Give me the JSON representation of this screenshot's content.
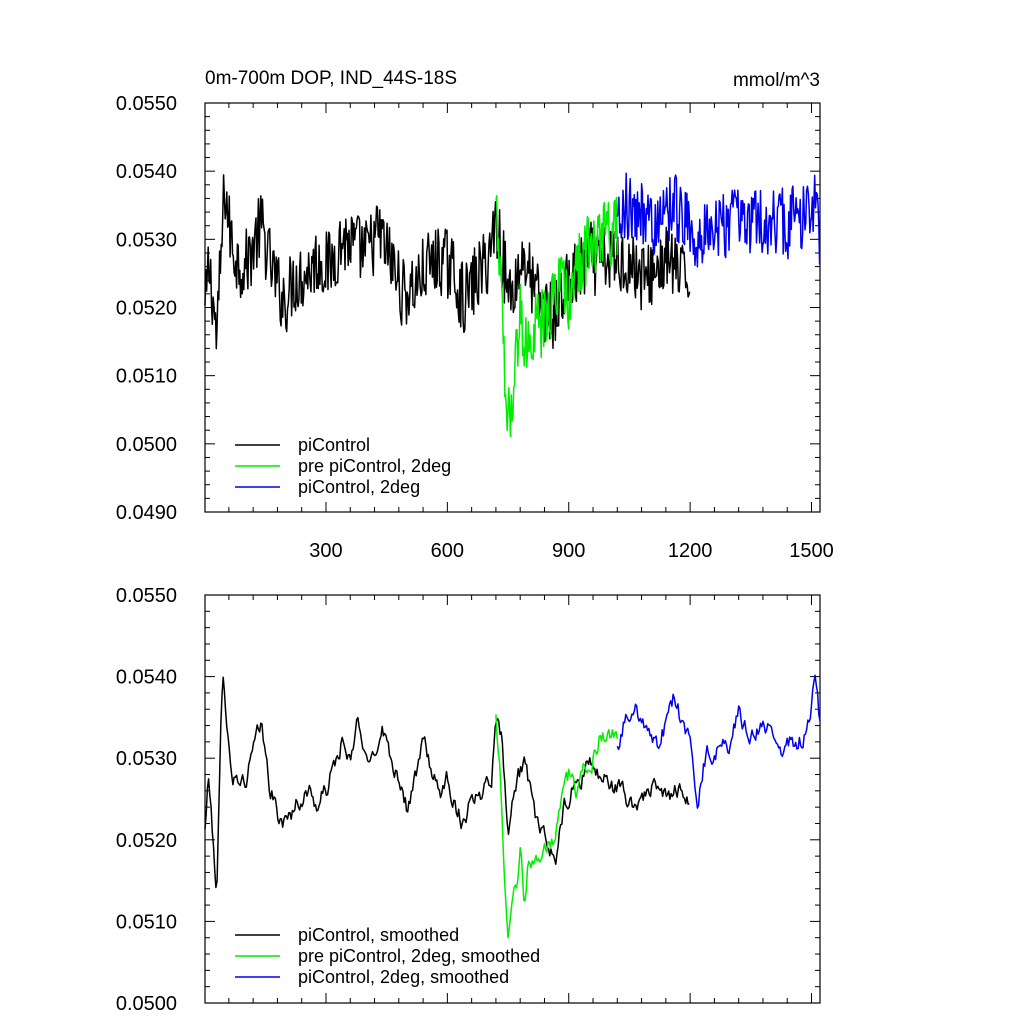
{
  "chart_data": [
    {
      "type": "line",
      "title": "0m-700m DOP, IND_44S-18S",
      "units": "mmol/m^3",
      "xlim": [
        1,
        1521
      ],
      "ylim": [
        0.049,
        0.055
      ],
      "xticks": [
        300,
        600,
        900,
        1200,
        1500
      ],
      "xtick_labels": [
        "300",
        "600",
        "900",
        "1200",
        "1500"
      ],
      "yticks": [
        0.049,
        0.05,
        0.051,
        0.052,
        0.053,
        0.054,
        0.055
      ],
      "ytick_labels": [
        "0.0490",
        "0.0500",
        "0.0510",
        "0.0520",
        "0.0530",
        "0.0540",
        "0.0550"
      ],
      "legend": "bottom-left",
      "grid": false,
      "series": [
        {
          "name": "piControl",
          "color": "#000000",
          "x": [
            1,
            10,
            20,
            30,
            40,
            50,
            60,
            70,
            80,
            100,
            120,
            140,
            160,
            180,
            200,
            220,
            250,
            280,
            310,
            340,
            370,
            400,
            430,
            460,
            490,
            520,
            550,
            580,
            610,
            640,
            670,
            700,
            720,
            735,
            750,
            770,
            790,
            810,
            830,
            850,
            870,
            890,
            910,
            930,
            950,
            970,
            1000,
            1030,
            1060,
            1090,
            1120,
            1150,
            1180,
            1200
          ],
          "y": [
            0.0519,
            0.0526,
            0.0522,
            0.0515,
            0.0527,
            0.0538,
            0.0532,
            0.0529,
            0.0527,
            0.0526,
            0.0529,
            0.0532,
            0.0527,
            0.0523,
            0.0521,
            0.0524,
            0.0525,
            0.0527,
            0.0526,
            0.053,
            0.0529,
            0.0528,
            0.0531,
            0.0527,
            0.0522,
            0.0523,
            0.0526,
            0.0527,
            0.0526,
            0.0521,
            0.0524,
            0.0527,
            0.0533,
            0.0528,
            0.0522,
            0.0524,
            0.0528,
            0.0523,
            0.0521,
            0.0519,
            0.0519,
            0.0523,
            0.0524,
            0.0525,
            0.0528,
            0.0526,
            0.0527,
            0.0527,
            0.0526,
            0.0524,
            0.0526,
            0.0527,
            0.0524,
            0.0525
          ]
        },
        {
          "name": "pre piControl, 2deg",
          "color": "#00ee00",
          "x": [
            720,
            730,
            740,
            750,
            760,
            770,
            780,
            790,
            800,
            820,
            840,
            860,
            880,
            900,
            920,
            940,
            960,
            980,
            1000,
            1020
          ],
          "y": [
            0.0534,
            0.0527,
            0.0511,
            0.0503,
            0.0507,
            0.0512,
            0.0519,
            0.0514,
            0.0516,
            0.0517,
            0.0518,
            0.0521,
            0.0524,
            0.0522,
            0.0526,
            0.0528,
            0.0529,
            0.0532,
            0.0531,
            0.0531
          ]
        },
        {
          "name": "piControl, 2deg",
          "color": "#0000ee",
          "x": [
            1020,
            1040,
            1060,
            1080,
            1100,
            1120,
            1140,
            1160,
            1180,
            1200,
            1220,
            1240,
            1260,
            1280,
            1300,
            1320,
            1340,
            1360,
            1380,
            1400,
            1420,
            1440,
            1460,
            1480,
            1500,
            1510,
            1521
          ],
          "y": [
            0.0531,
            0.0535,
            0.0533,
            0.0534,
            0.0533,
            0.0532,
            0.0533,
            0.0535,
            0.0533,
            0.0532,
            0.0528,
            0.0531,
            0.053,
            0.0532,
            0.0533,
            0.0534,
            0.0532,
            0.0533,
            0.0533,
            0.0532,
            0.0533,
            0.0532,
            0.0533,
            0.0534,
            0.0535,
            0.0537,
            0.0528
          ]
        }
      ]
    },
    {
      "type": "line",
      "xlim": [
        1,
        1521
      ],
      "ylim": [
        0.05,
        0.055
      ],
      "xticks": [
        300,
        600,
        900,
        1200,
        1500
      ],
      "yticks": [
        0.05,
        0.051,
        0.052,
        0.053,
        0.054,
        0.055
      ],
      "ytick_labels": [
        "0.0500",
        "0.0510",
        "0.0520",
        "0.0530",
        "0.0540",
        "0.0550"
      ],
      "legend": "bottom-left",
      "grid": false,
      "series": [
        {
          "name": "piControl, smoothed",
          "color": "#000000",
          "x": [
            1,
            10,
            20,
            30,
            40,
            45,
            50,
            60,
            70,
            80,
            100,
            120,
            140,
            160,
            180,
            200,
            220,
            240,
            260,
            280,
            300,
            320,
            340,
            360,
            380,
            400,
            420,
            440,
            460,
            480,
            500,
            520,
            540,
            560,
            580,
            600,
            620,
            640,
            660,
            680,
            700,
            710,
            720,
            735,
            750,
            770,
            790,
            810,
            830,
            850,
            870,
            890,
            910,
            930,
            950,
            970,
            1000,
            1030,
            1060,
            1090,
            1120,
            1150,
            1180,
            1200
          ],
          "y": [
            0.0521,
            0.0528,
            0.052,
            0.0514,
            0.0533,
            0.0539,
            0.0537,
            0.0533,
            0.0527,
            0.0528,
            0.0527,
            0.0531,
            0.0534,
            0.0527,
            0.0523,
            0.0522,
            0.0524,
            0.0525,
            0.0526,
            0.0524,
            0.0526,
            0.0529,
            0.0532,
            0.0529,
            0.0535,
            0.0529,
            0.0531,
            0.0534,
            0.053,
            0.0528,
            0.0524,
            0.0527,
            0.0532,
            0.0529,
            0.0525,
            0.0528,
            0.0524,
            0.0522,
            0.0526,
            0.0525,
            0.0528,
            0.0528,
            0.0536,
            0.0532,
            0.0522,
            0.0527,
            0.053,
            0.0524,
            0.0521,
            0.0519,
            0.0518,
            0.0524,
            0.0526,
            0.0527,
            0.053,
            0.0528,
            0.0527,
            0.0526,
            0.0524,
            0.0526,
            0.0526,
            0.0525,
            0.0527,
            0.0524
          ]
        },
        {
          "name": "pre piControl, 2deg, smoothed",
          "color": "#00ee00",
          "x": [
            720,
            730,
            740,
            750,
            760,
            770,
            780,
            790,
            800,
            820,
            840,
            860,
            880,
            900,
            920,
            940,
            960,
            980,
            1000,
            1020
          ],
          "y": [
            0.0535,
            0.0528,
            0.0515,
            0.0507,
            0.0512,
            0.0514,
            0.0519,
            0.0513,
            0.0517,
            0.0518,
            0.0519,
            0.052,
            0.0524,
            0.0528,
            0.0526,
            0.0529,
            0.053,
            0.0533,
            0.0533,
            0.0532
          ]
        },
        {
          "name": "piControl, 2deg, smoothed",
          "color": "#0000ee",
          "x": [
            1020,
            1040,
            1060,
            1080,
            1100,
            1120,
            1140,
            1160,
            1180,
            1200,
            1220,
            1240,
            1260,
            1280,
            1300,
            1320,
            1340,
            1360,
            1380,
            1400,
            1420,
            1440,
            1460,
            1480,
            1500,
            1510,
            1521
          ],
          "y": [
            0.0531,
            0.0535,
            0.0536,
            0.0535,
            0.0534,
            0.0532,
            0.0534,
            0.0538,
            0.0534,
            0.0532,
            0.0524,
            0.0531,
            0.053,
            0.0533,
            0.0531,
            0.0536,
            0.0533,
            0.0533,
            0.0535,
            0.0533,
            0.0531,
            0.0532,
            0.0532,
            0.0532,
            0.0536,
            0.0541,
            0.0534
          ]
        }
      ]
    }
  ]
}
